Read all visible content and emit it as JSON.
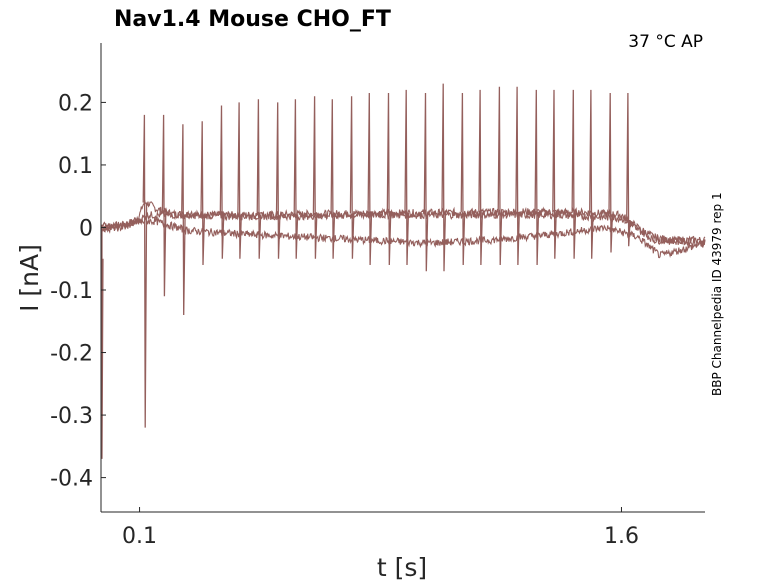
{
  "chart_data": {
    "type": "line",
    "title": "Nav1.4  Mouse  CHO_FT",
    "annotation": "37 °C  AP",
    "side_label": "BBP Channelpedia ID 43979 rep 1",
    "xlabel": "t [s]",
    "ylabel": "I [nA]",
    "xlim": [
      -0.02,
      1.86
    ],
    "ylim": [
      -0.455,
      0.295
    ],
    "x_ticks": [
      {
        "value": 0.1,
        "label": "0.1"
      },
      {
        "value": 1.6,
        "label": "1.6"
      }
    ],
    "y_ticks": [
      {
        "value": 0.2,
        "label": "0.2"
      },
      {
        "value": 0.1,
        "label": "0.1"
      },
      {
        "value": 0.0,
        "label": "0"
      },
      {
        "value": -0.1,
        "label": "-0.1"
      },
      {
        "value": -0.2,
        "label": "-0.2"
      },
      {
        "value": -0.3,
        "label": "-0.3"
      },
      {
        "value": -0.4,
        "label": "-0.4"
      }
    ],
    "line_color": "#945f5c",
    "grid": false,
    "series": [
      {
        "x": [
          -0.02,
          0.0,
          0.02,
          0.05,
          0.08,
          0.1,
          0.11,
          0.115,
          0.13,
          0.15,
          0.2,
          0.3,
          0.5,
          0.7,
          0.9,
          1.1,
          1.3,
          1.5,
          1.6,
          1.65,
          1.7,
          1.75,
          1.8,
          1.86
        ],
        "y": [
          0.0,
          0.002,
          0.003,
          0.004,
          0.01,
          0.02,
          0.035,
          0.04,
          0.038,
          0.03,
          0.022,
          0.02,
          0.02,
          0.022,
          0.023,
          0.024,
          0.025,
          0.024,
          0.02,
          0.0,
          -0.015,
          -0.02,
          -0.02,
          -0.02
        ],
        "spikes": [
          {
            "t": 0.115,
            "peak": 0.18,
            "trough": -0.32
          },
          {
            "t": 0.175,
            "peak": 0.18,
            "trough": -0.11
          },
          {
            "t": 0.235,
            "peak": 0.165,
            "trough": -0.14
          },
          {
            "t": 0.295,
            "peak": 0.17,
            "trough": -0.06
          },
          {
            "t": 0.355,
            "peak": 0.195,
            "trough": -0.05
          },
          {
            "t": 0.41,
            "peak": 0.2,
            "trough": -0.05
          },
          {
            "t": 0.47,
            "peak": 0.205,
            "trough": -0.05
          },
          {
            "t": 0.53,
            "peak": 0.2,
            "trough": -0.05
          },
          {
            "t": 0.585,
            "peak": 0.205,
            "trough": -0.05
          },
          {
            "t": 0.645,
            "peak": 0.21,
            "trough": -0.05
          },
          {
            "t": 0.7,
            "peak": 0.205,
            "trough": -0.05
          },
          {
            "t": 0.76,
            "peak": 0.21,
            "trough": -0.05
          },
          {
            "t": 0.815,
            "peak": 0.215,
            "trough": -0.06
          },
          {
            "t": 0.875,
            "peak": 0.215,
            "trough": -0.06
          },
          {
            "t": 0.93,
            "peak": 0.22,
            "trough": -0.06
          },
          {
            "t": 0.99,
            "peak": 0.215,
            "trough": -0.07
          },
          {
            "t": 1.045,
            "peak": 0.23,
            "trough": -0.07
          },
          {
            "t": 1.105,
            "peak": 0.215,
            "trough": -0.06
          },
          {
            "t": 1.16,
            "peak": 0.22,
            "trough": -0.06
          },
          {
            "t": 1.22,
            "peak": 0.225,
            "trough": -0.06
          },
          {
            "t": 1.275,
            "peak": 0.225,
            "trough": -0.06
          },
          {
            "t": 1.335,
            "peak": 0.22,
            "trough": -0.06
          },
          {
            "t": 1.39,
            "peak": 0.22,
            "trough": -0.05
          },
          {
            "t": 1.45,
            "peak": 0.22,
            "trough": -0.05
          },
          {
            "t": 1.505,
            "peak": 0.22,
            "trough": -0.05
          },
          {
            "t": 1.565,
            "peak": 0.215,
            "trough": -0.04
          },
          {
            "t": 1.62,
            "peak": 0.215,
            "trough": -0.03
          }
        ]
      },
      {
        "x": [
          -0.02,
          0.05,
          0.1,
          0.12,
          0.2,
          0.4,
          0.6,
          0.8,
          1.0,
          1.2,
          1.4,
          1.6,
          1.7,
          1.86
        ],
        "y": [
          -0.002,
          0.0,
          0.01,
          0.02,
          0.02,
          0.018,
          0.018,
          0.02,
          0.02,
          0.02,
          0.02,
          0.015,
          -0.02,
          -0.025
        ]
      },
      {
        "x": [
          -0.02,
          0.05,
          0.1,
          0.15,
          0.25,
          0.4,
          0.6,
          0.8,
          1.0,
          1.2,
          1.4,
          1.55,
          1.65,
          1.72,
          1.86
        ],
        "y": [
          0.003,
          0.003,
          0.01,
          0.01,
          -0.005,
          -0.01,
          -0.015,
          -0.02,
          -0.025,
          -0.02,
          -0.01,
          0.0,
          -0.015,
          -0.045,
          -0.025
        ]
      }
    ]
  }
}
